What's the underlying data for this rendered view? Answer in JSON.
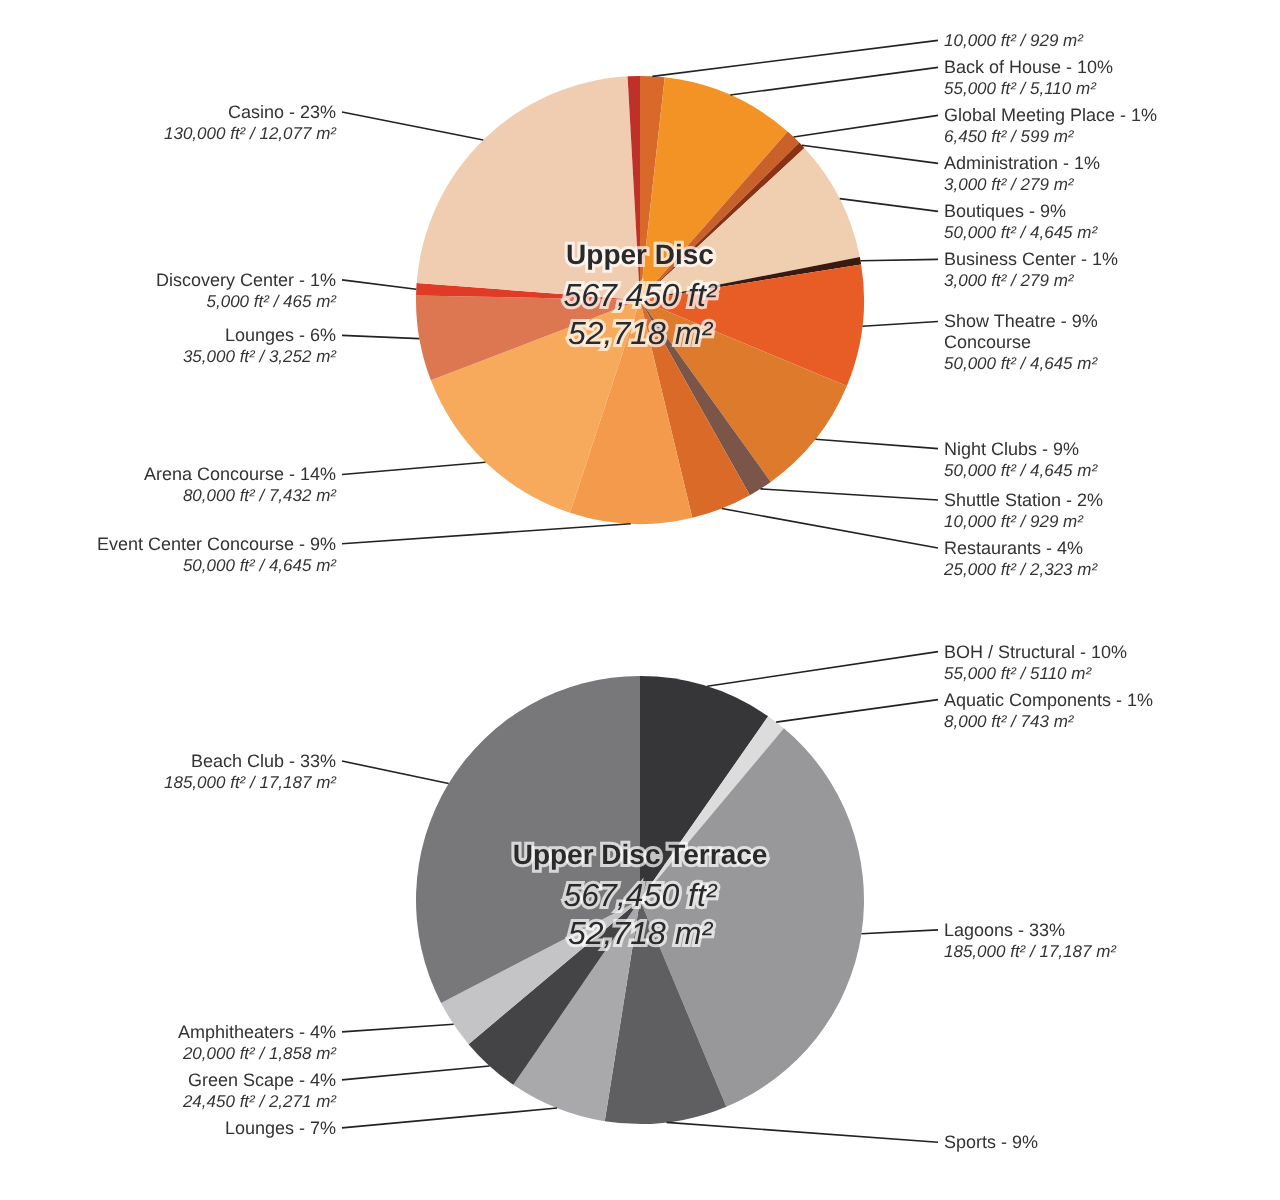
{
  "chart_data": [
    {
      "type": "pie",
      "title": "Upper Disc",
      "annotations": [
        "567,450 ft²",
        "52,718 m²"
      ],
      "categories": [
        null,
        "Back of House - 10%",
        "Global Meeting Place - 1%",
        "Administration - 1%",
        "Boutiques - 9%",
        "Business Center - 1%",
        "Show Theatre - 9%\nConcourse",
        "Night Clubs - 9%",
        "Shuttle Station - 2%",
        "Restaurants - 4%",
        "Event Center Concourse - 9%",
        "Arena Concourse - 14%",
        "Lounges - 6%",
        "Discovery Center - 1%",
        "Casino - 23%",
        null
      ],
      "values": [
        10000,
        55000,
        6450,
        3000,
        50000,
        3000,
        50000,
        50000,
        10000,
        25000,
        50000,
        80000,
        35000,
        5000,
        130000,
        5000
      ],
      "value_labels": [
        "10,000 ft² / 929 m²",
        "55,000 ft² / 5,110 m²",
        "6,450 ft² / 599 m²",
        "3,000 ft² / 279 m²",
        "50,000 ft² / 4,645 m²",
        "3,000 ft² / 279 m²",
        "50,000 ft² / 4,645 m²",
        "50,000 ft² / 4,645 m²",
        "10,000 ft² / 929 m²",
        "25,000 ft² / 2,323 m²",
        "50,000 ft² / 4,645 m²",
        "80,000 ft² / 7,432 m²",
        "35,000 ft² / 3,252 m²",
        "5,000 ft² / 465 m²",
        "130,000 ft² / 12,077 m²",
        null
      ],
      "colors": [
        "#d9692a",
        "#f39325",
        "#c9622a",
        "#8b3214",
        "#f0cfb0",
        "#3a1a0f",
        "#e85c26",
        "#de7a2c",
        "#7a5548",
        "#d96a28",
        "#f49a4c",
        "#f7a95c",
        "#dd7752",
        "#e03b26",
        "#f0cdb0",
        "#c0302a"
      ]
    },
    {
      "type": "pie",
      "title": "Upper Disc Terrace",
      "annotations": [
        "567,450 ft²",
        "52,718 m²"
      ],
      "categories": [
        "BOH / Structural - 10%",
        "Aquatic Components - 1%",
        "Lagoons - 33%",
        "Sports - 9%",
        "Lounges - 7%",
        "Green Scape - 4%",
        "Amphitheaters - 4%",
        "Beach Club - 33%"
      ],
      "values": [
        55000,
        8000,
        185000,
        50000,
        40000,
        24450,
        20000,
        185000
      ],
      "value_labels": [
        "55,000 ft² / 5110 m²",
        "8,000 ft² / 743 m²",
        "185,000 ft² / 17,187 m²",
        null,
        null,
        "24,450 ft² / 2,271 m²",
        "20,000 ft² / 1,858 m²",
        "185,000 ft² / 17,187 m²"
      ],
      "colors": [
        "#363638",
        "#dcdcdc",
        "#98989a",
        "#5f5f61",
        "#a9a9ab",
        "#444446",
        "#c4c4c6",
        "#78787a"
      ]
    }
  ]
}
